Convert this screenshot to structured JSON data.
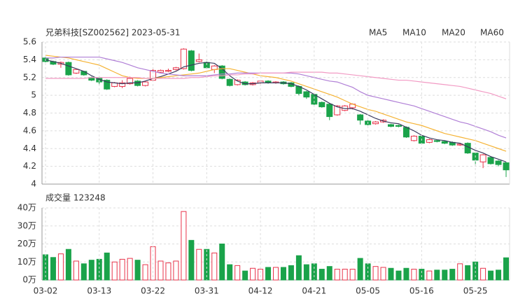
{
  "chart_data": [
    {
      "type": "candlestick",
      "title": "兄弟科技[SZ002562] 2023-05-31",
      "up_color": "#e8334a",
      "down_color": "#1aa34a",
      "open": [
        5.42,
        5.38,
        5.35,
        5.37,
        5.25,
        5.27,
        5.2,
        5.19,
        5.17,
        5.1,
        5.1,
        5.13,
        5.16,
        5.11,
        5.17,
        5.26,
        5.27,
        5.29,
        5.3,
        5.5,
        5.38,
        5.37,
        5.29,
        5.33,
        5.18,
        5.12,
        5.15,
        5.12,
        5.14,
        5.16,
        5.14,
        5.15,
        5.14,
        5.1,
        5.04,
        5.01,
        4.92,
        4.9,
        4.78,
        4.83,
        4.86,
        4.78,
        4.71,
        4.68,
        4.7,
        4.67,
        4.66,
        4.64,
        4.49,
        4.54,
        4.47,
        4.49,
        4.48,
        4.47,
        4.44,
        4.46,
        4.35,
        4.25,
        4.3,
        4.26,
        4.24
      ],
      "high": [
        5.43,
        5.39,
        5.38,
        5.38,
        5.29,
        5.27,
        5.21,
        5.21,
        5.18,
        5.15,
        5.17,
        5.21,
        5.17,
        5.16,
        5.31,
        5.29,
        5.3,
        5.32,
        5.53,
        5.51,
        5.47,
        5.38,
        5.34,
        5.34,
        5.19,
        5.18,
        5.16,
        5.15,
        5.17,
        5.17,
        5.16,
        5.16,
        5.15,
        5.11,
        5.05,
        5.02,
        4.93,
        4.91,
        4.89,
        4.89,
        4.91,
        4.79,
        4.72,
        4.71,
        4.73,
        4.68,
        4.67,
        4.65,
        4.55,
        4.55,
        4.51,
        4.5,
        4.49,
        4.48,
        4.46,
        4.47,
        4.36,
        4.34,
        4.31,
        4.27,
        4.25
      ],
      "low": [
        5.37,
        5.34,
        5.31,
        5.22,
        5.24,
        5.22,
        5.16,
        5.12,
        5.06,
        5.09,
        5.08,
        5.12,
        5.1,
        5.1,
        5.16,
        5.25,
        5.26,
        5.28,
        5.29,
        5.27,
        5.37,
        5.3,
        5.25,
        5.18,
        5.1,
        5.11,
        5.11,
        5.11,
        5.13,
        5.13,
        5.13,
        5.12,
        5.09,
        5.0,
        4.96,
        4.89,
        4.86,
        4.72,
        4.77,
        4.82,
        4.84,
        4.67,
        4.66,
        4.67,
        4.69,
        4.64,
        4.64,
        4.52,
        4.48,
        4.45,
        4.46,
        4.47,
        4.45,
        4.43,
        4.43,
        4.34,
        4.21,
        4.18,
        4.22,
        4.2,
        4.08
      ],
      "close": [
        5.38,
        5.35,
        5.37,
        5.23,
        5.29,
        5.23,
        5.17,
        5.15,
        5.07,
        5.14,
        5.14,
        5.19,
        5.11,
        5.15,
        5.28,
        5.28,
        5.28,
        5.31,
        5.52,
        5.28,
        5.4,
        5.31,
        5.33,
        5.19,
        5.11,
        5.17,
        5.12,
        5.14,
        5.16,
        5.14,
        5.15,
        5.13,
        5.1,
        5.02,
        4.98,
        4.9,
        4.87,
        4.76,
        4.88,
        4.88,
        4.9,
        4.72,
        4.67,
        4.7,
        4.72,
        4.65,
        4.65,
        4.53,
        4.54,
        4.46,
        4.5,
        4.48,
        4.46,
        4.44,
        4.45,
        4.35,
        4.27,
        4.33,
        4.23,
        4.22,
        4.16
      ],
      "series": [
        {
          "name": "MA5",
          "color": "#3a3a5e",
          "values": [
            5.4,
            5.38,
            5.36,
            5.33,
            5.3,
            5.27,
            5.22,
            5.18,
            5.15,
            5.14,
            5.13,
            5.14,
            5.14,
            5.16,
            5.19,
            5.21,
            5.24,
            5.27,
            5.32,
            5.34,
            5.36,
            5.37,
            5.36,
            5.3,
            5.22,
            5.16,
            5.13,
            5.13,
            5.14,
            5.14,
            5.14,
            5.14,
            5.13,
            5.1,
            5.06,
            5.01,
            4.96,
            4.91,
            4.87,
            4.85,
            4.85,
            4.82,
            4.78,
            4.74,
            4.71,
            4.69,
            4.68,
            4.64,
            4.6,
            4.55,
            4.52,
            4.5,
            4.49,
            4.47,
            4.46,
            4.42,
            4.38,
            4.35,
            4.31,
            4.28,
            4.25
          ]
        },
        {
          "name": "MA10",
          "color": "#f5b335",
          "values": [
            5.45,
            5.44,
            5.43,
            5.42,
            5.4,
            5.38,
            5.36,
            5.34,
            5.3,
            5.26,
            5.22,
            5.2,
            5.19,
            5.19,
            5.19,
            5.2,
            5.21,
            5.22,
            5.23,
            5.24,
            5.25,
            5.27,
            5.29,
            5.3,
            5.3,
            5.28,
            5.26,
            5.24,
            5.22,
            5.21,
            5.2,
            5.18,
            5.16,
            5.13,
            5.1,
            5.07,
            5.04,
            5.01,
            4.98,
            4.94,
            4.9,
            4.87,
            4.84,
            4.82,
            4.79,
            4.76,
            4.73,
            4.7,
            4.68,
            4.66,
            4.63,
            4.6,
            4.57,
            4.55,
            4.53,
            4.51,
            4.49,
            4.46,
            4.43,
            4.4,
            4.37
          ]
        },
        {
          "name": "MA20",
          "color": "#b07fd6",
          "values": [
            5.42,
            5.42,
            5.43,
            5.43,
            5.43,
            5.43,
            5.43,
            5.43,
            5.41,
            5.39,
            5.37,
            5.34,
            5.31,
            5.29,
            5.27,
            5.25,
            5.24,
            5.23,
            5.22,
            5.22,
            5.22,
            5.22,
            5.23,
            5.24,
            5.24,
            5.25,
            5.25,
            5.25,
            5.25,
            5.25,
            5.25,
            5.25,
            5.25,
            5.24,
            5.22,
            5.2,
            5.18,
            5.16,
            5.15,
            5.12,
            5.09,
            5.04,
            5.0,
            4.98,
            4.96,
            4.94,
            4.92,
            4.9,
            4.88,
            4.85,
            4.82,
            4.79,
            4.76,
            4.73,
            4.7,
            4.68,
            4.65,
            4.62,
            4.59,
            4.55,
            4.52
          ]
        },
        {
          "name": "MA60",
          "color": "#f29ac4",
          "values": [
            5.19,
            5.19,
            5.19,
            5.19,
            5.19,
            5.19,
            5.2,
            5.2,
            5.2,
            5.2,
            5.2,
            5.2,
            5.2,
            5.19,
            5.19,
            5.19,
            5.19,
            5.19,
            5.19,
            5.2,
            5.2,
            5.21,
            5.22,
            5.22,
            5.23,
            5.23,
            5.24,
            5.24,
            5.25,
            5.25,
            5.25,
            5.25,
            5.26,
            5.26,
            5.26,
            5.26,
            5.26,
            5.25,
            5.25,
            5.24,
            5.23,
            5.22,
            5.21,
            5.2,
            5.19,
            5.18,
            5.17,
            5.17,
            5.16,
            5.15,
            5.14,
            5.13,
            5.12,
            5.11,
            5.1,
            5.08,
            5.06,
            5.04,
            5.02,
            4.99,
            4.96
          ]
        }
      ],
      "ylim": [
        4,
        5.6
      ],
      "yticks": [
        4,
        4.2,
        4.4,
        4.6,
        4.8,
        5,
        5.2,
        5.4,
        5.6
      ],
      "grid": true
    },
    {
      "type": "bar",
      "title": "成交量 123248",
      "up_color": "#e8334a",
      "down_color": "#1aa34a",
      "categories": [
        "03-02",
        null,
        null,
        null,
        null,
        null,
        null,
        "03-13",
        null,
        null,
        null,
        null,
        null,
        null,
        "03-22",
        null,
        null,
        null,
        null,
        null,
        null,
        "03-31",
        null,
        null,
        null,
        null,
        null,
        null,
        "04-12",
        null,
        null,
        null,
        null,
        null,
        null,
        "04-21",
        null,
        null,
        null,
        null,
        null,
        null,
        "05-05",
        null,
        null,
        null,
        null,
        null,
        null,
        "05-16",
        null,
        null,
        null,
        null,
        null,
        null,
        "05-25",
        null,
        null,
        null,
        null
      ],
      "values": [
        140000,
        125000,
        145000,
        170000,
        105000,
        90000,
        110000,
        115000,
        150000,
        100000,
        115000,
        120000,
        110000,
        85000,
        185000,
        105000,
        95000,
        105000,
        380000,
        220000,
        170000,
        170000,
        150000,
        200000,
        85000,
        80000,
        50000,
        65000,
        60000,
        70000,
        70000,
        70000,
        80000,
        135000,
        85000,
        90000,
        60000,
        75000,
        60000,
        60000,
        60000,
        120000,
        90000,
        75000,
        70000,
        65000,
        50000,
        65000,
        60000,
        60000,
        50000,
        55000,
        55000,
        60000,
        90000,
        80000,
        100000,
        65000,
        50000,
        55000,
        123248
      ],
      "ylim": [
        0,
        400000
      ],
      "yticks": [
        {
          "value": 0,
          "label": "0万"
        },
        {
          "value": 100000,
          "label": "10万"
        },
        {
          "value": 200000,
          "label": "20万"
        },
        {
          "value": 300000,
          "label": "30万"
        },
        {
          "value": 400000,
          "label": "40万"
        }
      ],
      "grid": true
    }
  ]
}
